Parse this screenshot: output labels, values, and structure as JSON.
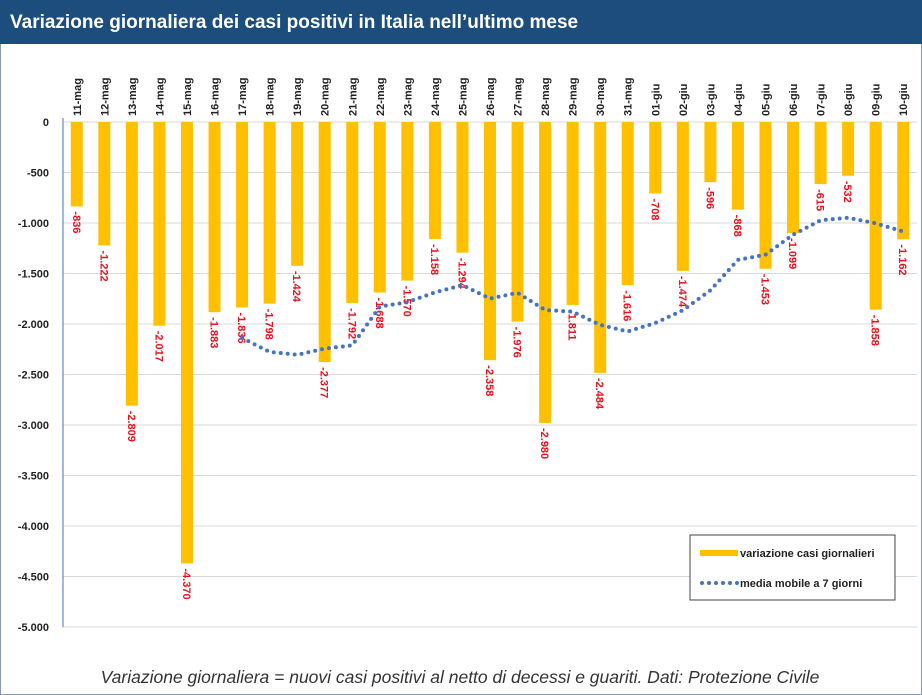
{
  "chart_data": {
    "type": "bar",
    "title": "Variazione giornaliera dei casi positivi in Italia nell’ultimo mese",
    "footnote": "Variazione giornaliera = nuovi casi positivi al netto di decessi e guariti. Dati: Protezione Civile",
    "categories": [
      "11-mag",
      "12-mag",
      "13-mag",
      "14-mag",
      "15-mag",
      "16-mag",
      "17-mag",
      "18-mag",
      "19-mag",
      "20-mag",
      "21-mag",
      "22-mag",
      "23-mag",
      "24-mag",
      "25-mag",
      "26-mag",
      "27-mag",
      "28-mag",
      "29-mag",
      "30-mag",
      "31-mag",
      "01-giu",
      "02-giu",
      "03-giu",
      "04-giu",
      "05-giu",
      "06-giu",
      "07-giu",
      "08-giu",
      "09-giu",
      "10-giu"
    ],
    "series": [
      {
        "name": "variazione casi giornalieri",
        "type": "bar",
        "color": "#ffc000",
        "values": [
          -836,
          -1222,
          -2809,
          -2017,
          -4370,
          -1883,
          -1836,
          -1798,
          -1424,
          -2377,
          -1792,
          -1688,
          -1570,
          -1158,
          -1294,
          -2358,
          -1976,
          -2980,
          -1811,
          -2484,
          -1616,
          -708,
          -1474,
          -596,
          -868,
          -1453,
          -1099,
          -615,
          -532,
          -1858,
          -1162
        ],
        "value_labels": [
          "-836",
          "-1.222",
          "-2.809",
          "-2.017",
          "-4.370",
          "-1.883",
          "-1.836",
          "-1.798",
          "-1.424",
          "-2.377",
          "-1.792",
          "-1.688",
          "-1.570",
          "-1.158",
          "-1.294",
          "-2.358",
          "-1.976",
          "-2.980",
          "-1.811",
          "-2.484",
          "-1.616",
          "-708",
          "-1.474",
          "-596",
          "-868",
          "-1.453",
          "-1.099",
          "-615",
          "-532",
          "-1.858",
          "-1.162"
        ],
        "label_color": "#e8111d"
      },
      {
        "name": "media mobile a 7 giorni",
        "type": "line",
        "color": "#4472c4",
        "values": [
          null,
          null,
          null,
          null,
          null,
          null,
          -2139,
          -2276,
          -2305,
          -2244,
          -2211,
          -1828,
          -1784,
          -1687,
          -1615,
          -1748,
          -1691,
          -1861,
          -1878,
          -2009,
          -2074,
          -1990,
          -1864,
          -1667,
          -1365,
          -1314,
          -1116,
          -973,
          -948,
          -1003,
          -1084
        ]
      }
    ],
    "ylim": [
      -5000,
      0
    ],
    "yticks": [
      0,
      -500,
      {
        "value": -1000,
        "label": "-1.000"
      },
      {
        "value": -1500,
        "label": "-1.500"
      },
      {
        "value": -2000,
        "label": "-2.000"
      },
      {
        "value": -2500,
        "label": "-2.500"
      },
      {
        "value": -3000,
        "label": "-3.000"
      },
      {
        "value": -3500,
        "label": "-3.500"
      },
      {
        "value": -4000,
        "label": "-4.000"
      },
      {
        "value": -4500,
        "label": "-4.500"
      },
      {
        "value": -5000,
        "label": "-5.000"
      }
    ],
    "grid": true,
    "legend": "lower right"
  }
}
